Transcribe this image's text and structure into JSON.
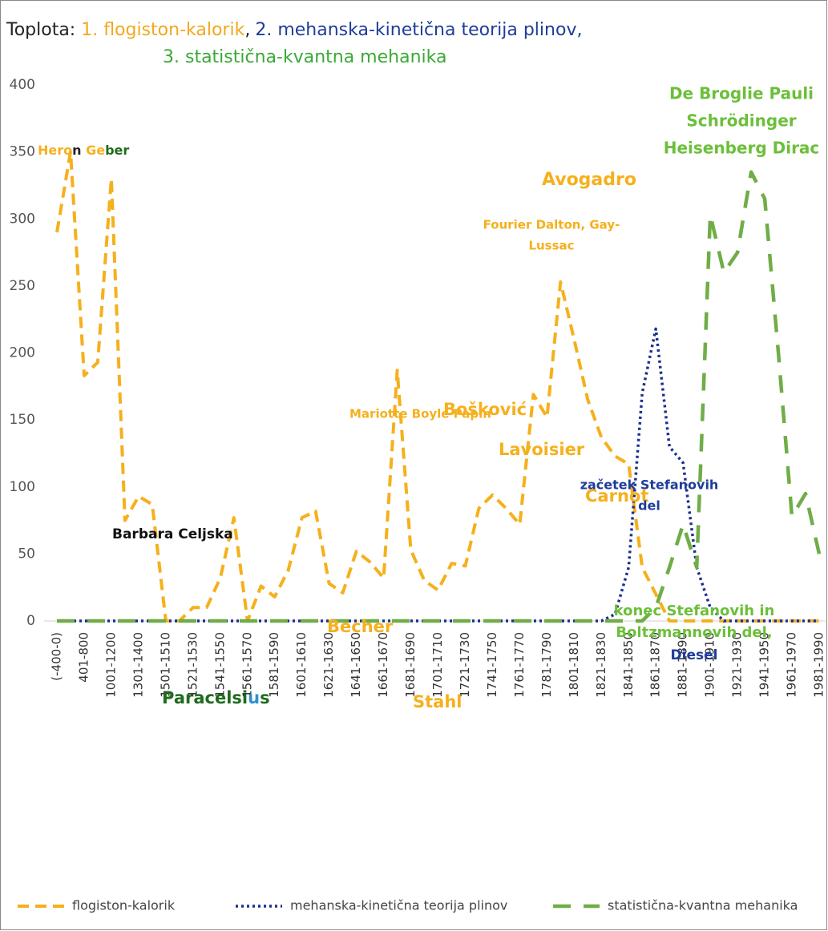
{
  "chart_data": {
    "type": "line",
    "title_parts": [
      {
        "text": "Toplota: ",
        "color": "#222222"
      },
      {
        "text": "1. flogiston-kalorik",
        "color": "#f2a81d"
      },
      {
        "text": ",",
        "color": "#222222"
      },
      {
        "text": "2. mehanska-kinetična teorija plinov,",
        "color": "#1f3d99"
      },
      {
        "text": "3. statistična-kvantna mehanika",
        "color": "#3aa935"
      }
    ],
    "categories": [
      "(-400-0)",
      null,
      "401-800",
      null,
      "1001-1200",
      null,
      "1301-1400",
      null,
      "1501-1510",
      null,
      "1521-1530",
      null,
      "1541-1550",
      null,
      "1561-1570",
      null,
      "1581-1590",
      null,
      "1601-1610",
      null,
      "1621-1630",
      null,
      "1641-1650",
      null,
      "1661-1670",
      null,
      "1681-1690",
      null,
      "1701-1710",
      null,
      "1721-1730",
      null,
      "1741-1750",
      null,
      "1761-1770",
      null,
      "1781-1790",
      null,
      "1801-1810",
      null,
      "1821-1830",
      null,
      "1841-1850",
      null,
      "1861-1870",
      null,
      "1881-1890",
      null,
      "1901-1910",
      null,
      "1921-1930",
      null,
      "1941-1950",
      null,
      "1961-1970",
      null,
      "1981-1990"
    ],
    "series": [
      {
        "name": "flogiston-kalorik",
        "color": "#f5b01c",
        "style": "dashed",
        "values": [
          290,
          350,
          183,
          193,
          330,
          75,
          93,
          87,
          0,
          0,
          10,
          10,
          32,
          77,
          0,
          26,
          18,
          38,
          77,
          82,
          28,
          21,
          52,
          44,
          32,
          187,
          53,
          30,
          23,
          43,
          41,
          84,
          94,
          84,
          72,
          169,
          152,
          253,
          210,
          165,
          137,
          123,
          117,
          40,
          20,
          0,
          0,
          0,
          0,
          0,
          0,
          0,
          0,
          0,
          0,
          0,
          0
        ]
      },
      {
        "name": "mehanska-kinetična teorija plinov",
        "color": "#1a2f8f",
        "style": "dotted",
        "values": [
          0,
          0,
          0,
          0,
          0,
          0,
          0,
          0,
          0,
          0,
          0,
          0,
          0,
          0,
          0,
          0,
          0,
          0,
          0,
          0,
          0,
          0,
          0,
          0,
          0,
          0,
          0,
          0,
          0,
          0,
          0,
          0,
          0,
          0,
          0,
          0,
          0,
          0,
          0,
          0,
          0,
          5,
          40,
          170,
          218,
          130,
          118,
          40,
          10,
          0,
          0,
          0,
          0,
          0,
          0,
          0,
          0
        ]
      },
      {
        "name": "statistična-kvantna mehanika",
        "color": "#70ad47",
        "style": "longdash",
        "values": [
          0,
          0,
          0,
          0,
          0,
          0,
          0,
          0,
          0,
          0,
          0,
          0,
          0,
          0,
          0,
          0,
          0,
          0,
          0,
          0,
          0,
          0,
          0,
          0,
          0,
          0,
          0,
          0,
          0,
          0,
          0,
          0,
          0,
          0,
          0,
          0,
          0,
          0,
          0,
          0,
          0,
          0,
          0,
          0,
          10,
          40,
          72,
          40,
          303,
          260,
          275,
          335,
          315,
          200,
          78,
          95,
          50
        ]
      }
    ],
    "ylim": [
      0,
      400
    ],
    "yticks": [
      0,
      50,
      100,
      150,
      200,
      250,
      300,
      350,
      400
    ],
    "grid": false,
    "legend": "bottom",
    "annotations": [
      {
        "parts": [
          {
            "text": "Hero",
            "color": "#f5b01c"
          },
          {
            "text": "n",
            "color": "#222222"
          },
          {
            "text": " Ge",
            "color": "#f5b01c"
          },
          {
            "text": "ber",
            "color": "#1f6b1f"
          }
        ]
      },
      {
        "lines": [
          "Barbara Celjska"
        ],
        "color": "#111111"
      },
      {
        "parts": [
          {
            "text": "Paracelsi",
            "color": "#1f6b1f"
          },
          {
            "text": "u",
            "color": "#2e8fd0"
          },
          {
            "text": "s",
            "color": "#1f6b1f"
          }
        ]
      },
      {
        "lines": [
          "Becher"
        ],
        "color": "#f5b01c"
      },
      {
        "lines": [
          "Stahl"
        ],
        "color": "#f5b01c"
      },
      {
        "lines": [
          "Mariotte Boyle Papin"
        ],
        "color": "#f5b01c"
      },
      {
        "lines": [
          "Bošković"
        ],
        "color": "#f5b01c"
      },
      {
        "lines": [
          "Lavoisier"
        ],
        "color": "#f5b01c"
      },
      {
        "lines": [
          "Carnot"
        ],
        "color": "#f5b01c"
      },
      {
        "lines": [
          "začetek Stefanovih",
          "del"
        ],
        "color": "#1f3d99"
      },
      {
        "lines": [
          "Fourier Dalton, Gay-",
          "Lussac"
        ],
        "color": "#f5b01c"
      },
      {
        "lines": [
          "Avogadro"
        ],
        "color": "#f5b01c"
      },
      {
        "lines": [
          "De Broglie Pauli",
          "Schrödinger",
          "Heisenberg Dirac"
        ],
        "color": "#6cbf3a"
      },
      {
        "lines": [
          "konec Stefanovih in",
          "Boltzmannovih del,"
        ],
        "color": "#6cbf3a"
      },
      {
        "lines": [
          "Diesel"
        ],
        "color": "#1f3d99"
      }
    ]
  }
}
